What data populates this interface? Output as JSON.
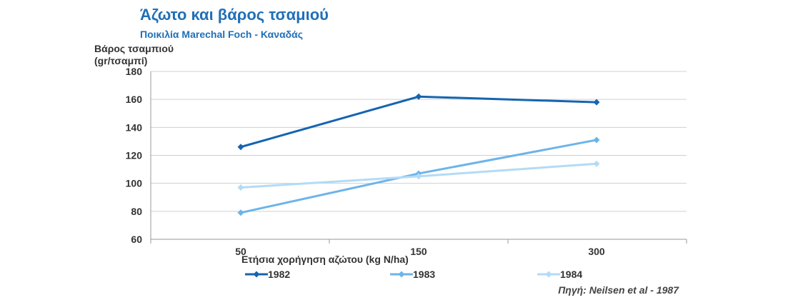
{
  "chart_data": {
    "type": "line",
    "title": "Άζωτο και βάρος τσαμιού",
    "subtitle": "Ποικιλία  Marechal Foch - Καναδάς",
    "ylabel": "Βάρος τσαμπιού\n(gr/τσαμπί)",
    "xlabel": "Ετήσια χορήγηση αζώτου (kg N/ha)",
    "source": "Πηγή: Neilsen et al - 1987",
    "categories": [
      "50",
      "150",
      "300"
    ],
    "ylim": [
      60,
      180
    ],
    "yticks": [
      60,
      80,
      100,
      120,
      140,
      160,
      180
    ],
    "grid": true,
    "legend_position": "bottom",
    "series": [
      {
        "name": "1982",
        "color": "#1565b0",
        "values": [
          126,
          162,
          158
        ]
      },
      {
        "name": "1983",
        "color": "#6cb4ea",
        "values": [
          79,
          107,
          131
        ]
      },
      {
        "name": "1984",
        "color": "#b3dbf6",
        "values": [
          97,
          105,
          114
        ]
      }
    ]
  }
}
